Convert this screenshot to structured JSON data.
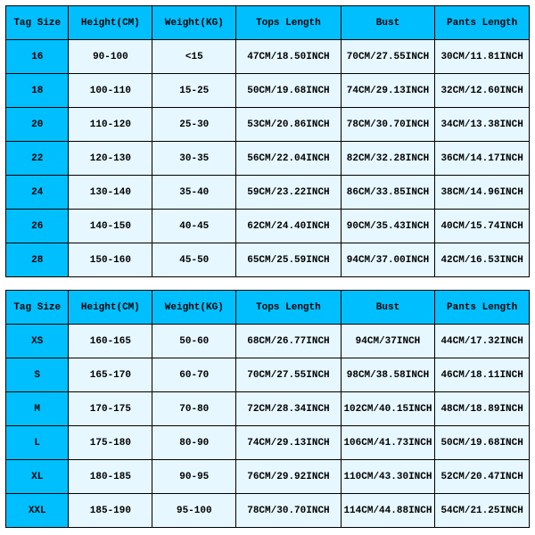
{
  "colors": {
    "header_bg": "#00bfff",
    "tagsize_bg": "#00bfff",
    "cell_bg": "#e6f7ff",
    "border": "#000000",
    "text": "#000000"
  },
  "col_widths_pct": [
    12,
    16,
    16,
    20,
    18,
    18
  ],
  "columns": [
    "Tag Size",
    "Height(CM)",
    "Weight(KG)",
    "Tops Length",
    "Bust",
    "Pants Length"
  ],
  "table1": {
    "rows": [
      [
        "16",
        "90-100",
        "<15",
        "47CM/18.50INCH",
        "70CM/27.55INCH",
        "30CM/11.81INCH"
      ],
      [
        "18",
        "100-110",
        "15-25",
        "50CM/19.68INCH",
        "74CM/29.13INCH",
        "32CM/12.60INCH"
      ],
      [
        "20",
        "110-120",
        "25-30",
        "53CM/20.86INCH",
        "78CM/30.70INCH",
        "34CM/13.38INCH"
      ],
      [
        "22",
        "120-130",
        "30-35",
        "56CM/22.04INCH",
        "82CM/32.28INCH",
        "36CM/14.17INCH"
      ],
      [
        "24",
        "130-140",
        "35-40",
        "59CM/23.22INCH",
        "86CM/33.85INCH",
        "38CM/14.96INCH"
      ],
      [
        "26",
        "140-150",
        "40-45",
        "62CM/24.40INCH",
        "90CM/35.43INCH",
        "40CM/15.74INCH"
      ],
      [
        "28",
        "150-160",
        "45-50",
        "65CM/25.59INCH",
        "94CM/37.00INCH",
        "42CM/16.53INCH"
      ]
    ]
  },
  "table2": {
    "rows": [
      [
        "XS",
        "160-165",
        "50-60",
        "68CM/26.77INCH",
        "94CM/37INCH",
        "44CM/17.32INCH"
      ],
      [
        "S",
        "165-170",
        "60-70",
        "70CM/27.55INCH",
        "98CM/38.58INCH",
        "46CM/18.11INCH"
      ],
      [
        "M",
        "170-175",
        "70-80",
        "72CM/28.34INCH",
        "102CM/40.15INCH",
        "48CM/18.89INCH"
      ],
      [
        "L",
        "175-180",
        "80-90",
        "74CM/29.13INCH",
        "106CM/41.73INCH",
        "50CM/19.68INCH"
      ],
      [
        "XL",
        "180-185",
        "90-95",
        "76CM/29.92INCH",
        "110CM/43.30INCH",
        "52CM/20.47INCH"
      ],
      [
        "XXL",
        "185-190",
        "95-100",
        "78CM/30.70INCH",
        "114CM/44.88INCH",
        "54CM/21.25INCH"
      ]
    ]
  }
}
